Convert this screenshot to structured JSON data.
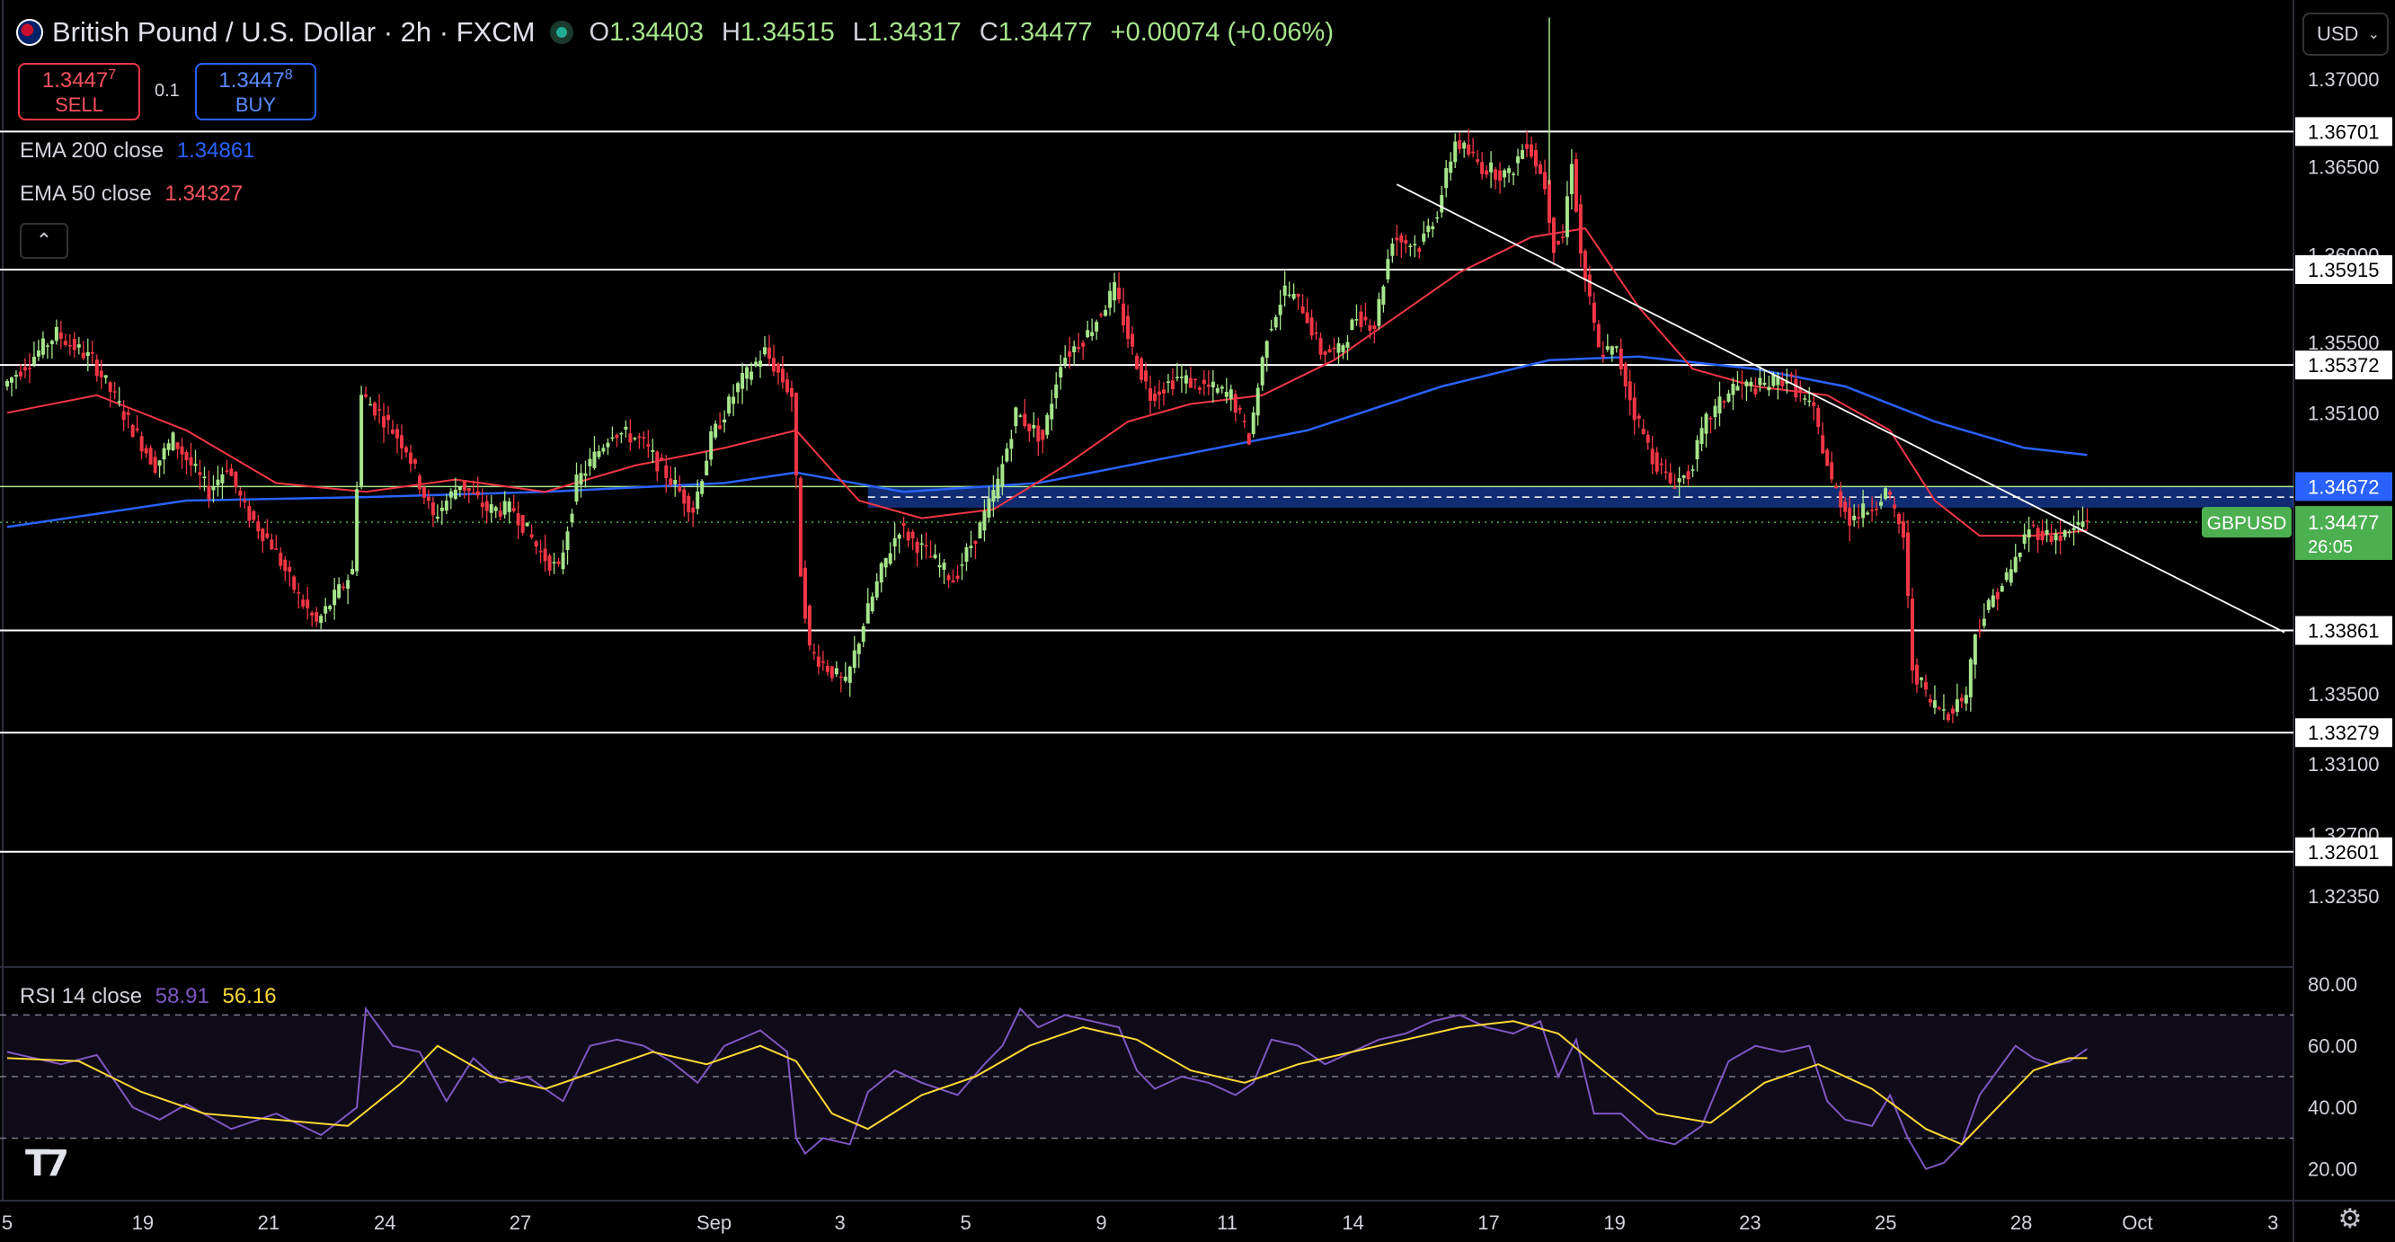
{
  "header": {
    "title": "British Pound / U.S. Dollar · 2h · FXCM",
    "ohlc": [
      {
        "k": "O",
        "v": "1.34403"
      },
      {
        "k": "H",
        "v": "1.34515"
      },
      {
        "k": "L",
        "v": "1.34317"
      },
      {
        "k": "C",
        "v": "1.34477"
      }
    ],
    "change": "+0.00074 (+0.06%)"
  },
  "trade": {
    "sell_price_main": "1.3447",
    "sell_price_sup": "7",
    "sell_label": "SELL",
    "quantity": "0.1",
    "buy_price_main": "1.3447",
    "buy_price_sup": "8",
    "buy_label": "BUY"
  },
  "indicators": {
    "ema200_label": "EMA 200 close",
    "ema200_value": "1.34861",
    "ema50_label": "EMA 50 close",
    "ema50_value": "1.34327",
    "rsi_label": "RSI 14 close",
    "rsi_value": "58.91",
    "rsi_ma_value": "56.16"
  },
  "currency_selector": "USD",
  "colors": {
    "up": "#a6e58b",
    "down": "#f23645",
    "ema50": "#f23645",
    "ema200": "#2962ff",
    "rsi": "#7e57c2",
    "rsi_ma": "#fdd835",
    "level": "#ffffff",
    "symbol_badge": "#4caf50"
  },
  "chart_data": {
    "type": "candlestick",
    "symbol": "GBPUSD",
    "timeframe": "2h",
    "price_axis_ticks": [
      1.37,
      1.365,
      1.36,
      1.355,
      1.351,
      1.335,
      1.331,
      1.327,
      1.3235
    ],
    "price_axis_tick_labels": [
      "1.37000",
      "1.36500",
      "1.36000",
      "1.35500",
      "1.35100",
      "1.33500",
      "1.33100",
      "1.32700",
      "1.32350"
    ],
    "ylim": [
      1.3195,
      1.3745
    ],
    "horizontal_levels": [
      1.36701,
      1.35915,
      1.35372,
      1.33861,
      1.33279,
      1.32601
    ],
    "horizontal_level_labels": [
      "1.36701",
      "1.35915",
      "1.35372",
      "1.33861",
      "1.33279",
      "1.32601"
    ],
    "support_zone": {
      "from": 1.3456,
      "to": 1.3468,
      "label": "1.34672"
    },
    "last_price": {
      "symbol_label": "GBPUSD",
      "value": 1.34477,
      "label": "1.34477",
      "countdown": "26:05"
    },
    "x_tick_labels": [
      "5",
      "19",
      "21",
      "24",
      "27",
      "Sep",
      "3",
      "5",
      "9",
      "11",
      "14",
      "17",
      "19",
      "23",
      "25",
      "28",
      "Oct",
      "3"
    ],
    "price_path": [
      [
        0,
        1.3525
      ],
      [
        6,
        1.3555
      ],
      [
        10,
        1.354
      ],
      [
        14,
        1.3505
      ],
      [
        17,
        1.348
      ],
      [
        19,
        1.3495
      ],
      [
        23,
        1.3465
      ],
      [
        25,
        1.348
      ],
      [
        27,
        1.3455
      ],
      [
        30,
        1.3435
      ],
      [
        33,
        1.3405
      ],
      [
        35,
        1.339
      ],
      [
        37,
        1.3405
      ],
      [
        39,
        1.342
      ],
      [
        40,
        1.352
      ],
      [
        42,
        1.351
      ],
      [
        45,
        1.349
      ],
      [
        48,
        1.345
      ],
      [
        51,
        1.347
      ],
      [
        54,
        1.3455
      ],
      [
        57,
        1.3455
      ],
      [
        60,
        1.343
      ],
      [
        62,
        1.342
      ],
      [
        64,
        1.347
      ],
      [
        68,
        1.35
      ],
      [
        71,
        1.3495
      ],
      [
        74,
        1.3475
      ],
      [
        77,
        1.3455
      ],
      [
        79,
        1.3495
      ],
      [
        82,
        1.3525
      ],
      [
        85,
        1.3545
      ],
      [
        88,
        1.352
      ],
      [
        89,
        1.342
      ],
      [
        90,
        1.3375
      ],
      [
        92,
        1.3365
      ],
      [
        94,
        1.3355
      ],
      [
        96,
        1.339
      ],
      [
        98,
        1.342
      ],
      [
        100,
        1.3445
      ],
      [
        103,
        1.343
      ],
      [
        106,
        1.3415
      ],
      [
        109,
        1.3445
      ],
      [
        111,
        1.347
      ],
      [
        113,
        1.351
      ],
      [
        116,
        1.3495
      ],
      [
        118,
        1.354
      ],
      [
        121,
        1.3555
      ],
      [
        124,
        1.358
      ],
      [
        126,
        1.3545
      ],
      [
        128,
        1.352
      ],
      [
        131,
        1.353
      ],
      [
        134,
        1.3525
      ],
      [
        137,
        1.352
      ],
      [
        139,
        1.3495
      ],
      [
        141,
        1.3555
      ],
      [
        143,
        1.358
      ],
      [
        145,
        1.357
      ],
      [
        147,
        1.3545
      ],
      [
        149,
        1.3545
      ],
      [
        151,
        1.3565
      ],
      [
        153,
        1.356
      ],
      [
        155,
        1.361
      ],
      [
        158,
        1.3605
      ],
      [
        160,
        1.3625
      ],
      [
        162,
        1.3665
      ],
      [
        165,
        1.365
      ],
      [
        168,
        1.3645
      ],
      [
        170,
        1.3665
      ],
      [
        172,
        1.364
      ],
      [
        173,
        1.3605
      ],
      [
        174,
        1.361
      ],
      [
        175,
        1.3655
      ],
      [
        176,
        1.36
      ],
      [
        178,
        1.3545
      ],
      [
        180,
        1.3545
      ],
      [
        182,
        1.351
      ],
      [
        184,
        1.3485
      ],
      [
        186,
        1.347
      ],
      [
        188,
        1.3475
      ],
      [
        190,
        1.3505
      ],
      [
        193,
        1.3525
      ],
      [
        196,
        1.3525
      ],
      [
        199,
        1.353
      ],
      [
        202,
        1.351
      ],
      [
        204,
        1.347
      ],
      [
        206,
        1.345
      ],
      [
        208,
        1.3455
      ],
      [
        210,
        1.3465
      ],
      [
        212,
        1.344
      ],
      [
        213,
        1.3365
      ],
      [
        215,
        1.3345
      ],
      [
        217,
        1.334
      ],
      [
        219,
        1.335
      ],
      [
        220,
        1.3385
      ],
      [
        222,
        1.3405
      ],
      [
        224,
        1.342
      ],
      [
        226,
        1.3445
      ],
      [
        228,
        1.344
      ],
      [
        230,
        1.344
      ],
      [
        232,
        1.3448
      ]
    ],
    "ema50_path": [
      [
        0,
        1.351
      ],
      [
        10,
        1.352
      ],
      [
        20,
        1.35
      ],
      [
        30,
        1.347
      ],
      [
        40,
        1.3465
      ],
      [
        50,
        1.3472
      ],
      [
        60,
        1.3465
      ],
      [
        70,
        1.348
      ],
      [
        80,
        1.349
      ],
      [
        88,
        1.35
      ],
      [
        95,
        1.346
      ],
      [
        102,
        1.345
      ],
      [
        110,
        1.3455
      ],
      [
        118,
        1.348
      ],
      [
        125,
        1.3505
      ],
      [
        132,
        1.3515
      ],
      [
        140,
        1.352
      ],
      [
        148,
        1.354
      ],
      [
        155,
        1.3565
      ],
      [
        162,
        1.359
      ],
      [
        170,
        1.361
      ],
      [
        176,
        1.3615
      ],
      [
        182,
        1.357
      ],
      [
        188,
        1.3535
      ],
      [
        195,
        1.3525
      ],
      [
        203,
        1.352
      ],
      [
        210,
        1.35
      ],
      [
        215,
        1.346
      ],
      [
        220,
        1.344
      ],
      [
        226,
        1.344
      ],
      [
        232,
        1.3443
      ]
    ],
    "ema200_path": [
      [
        0,
        1.3445
      ],
      [
        20,
        1.346
      ],
      [
        40,
        1.3462
      ],
      [
        60,
        1.3465
      ],
      [
        80,
        1.347
      ],
      [
        88,
        1.3476
      ],
      [
        100,
        1.3465
      ],
      [
        115,
        1.347
      ],
      [
        130,
        1.3485
      ],
      [
        145,
        1.35
      ],
      [
        160,
        1.3525
      ],
      [
        172,
        1.354
      ],
      [
        182,
        1.3542
      ],
      [
        195,
        1.3535
      ],
      [
        205,
        1.3525
      ],
      [
        215,
        1.3505
      ],
      [
        225,
        1.349
      ],
      [
        232,
        1.3486
      ]
    ],
    "trendline": {
      "from": [
        155,
        1.364
      ],
      "to": [
        254,
        1.3385
      ]
    },
    "rsi": {
      "ylim": [
        10,
        85
      ],
      "ticks": [
        80,
        60,
        40,
        20
      ],
      "tick_labels": [
        "80.00",
        "60.00",
        "40.00",
        "20.00"
      ],
      "bands": [
        70,
        50,
        30
      ],
      "rsi_path": [
        [
          0,
          58
        ],
        [
          6,
          54
        ],
        [
          10,
          57
        ],
        [
          14,
          40
        ],
        [
          17,
          36
        ],
        [
          20,
          41
        ],
        [
          25,
          33
        ],
        [
          30,
          38
        ],
        [
          35,
          31
        ],
        [
          39,
          40
        ],
        [
          40,
          72
        ],
        [
          43,
          60
        ],
        [
          46,
          58
        ],
        [
          49,
          42
        ],
        [
          52,
          56
        ],
        [
          55,
          48
        ],
        [
          58,
          50
        ],
        [
          62,
          42
        ],
        [
          65,
          60
        ],
        [
          68,
          62
        ],
        [
          71,
          60
        ],
        [
          74,
          55
        ],
        [
          77,
          48
        ],
        [
          80,
          60
        ],
        [
          84,
          65
        ],
        [
          87,
          58
        ],
        [
          88,
          30
        ],
        [
          89,
          25
        ],
        [
          91,
          30
        ],
        [
          94,
          28
        ],
        [
          96,
          45
        ],
        [
          99,
          52
        ],
        [
          102,
          48
        ],
        [
          106,
          44
        ],
        [
          109,
          54
        ],
        [
          111,
          60
        ],
        [
          113,
          72
        ],
        [
          115,
          66
        ],
        [
          118,
          70
        ],
        [
          121,
          68
        ],
        [
          124,
          66
        ],
        [
          126,
          52
        ],
        [
          128,
          46
        ],
        [
          131,
          50
        ],
        [
          134,
          48
        ],
        [
          137,
          44
        ],
        [
          139,
          48
        ],
        [
          141,
          62
        ],
        [
          144,
          60
        ],
        [
          147,
          54
        ],
        [
          150,
          58
        ],
        [
          153,
          62
        ],
        [
          156,
          64
        ],
        [
          159,
          68
        ],
        [
          162,
          70
        ],
        [
          165,
          66
        ],
        [
          168,
          64
        ],
        [
          171,
          68
        ],
        [
          173,
          50
        ],
        [
          175,
          62
        ],
        [
          177,
          38
        ],
        [
          180,
          38
        ],
        [
          183,
          30
        ],
        [
          186,
          28
        ],
        [
          189,
          34
        ],
        [
          192,
          55
        ],
        [
          195,
          60
        ],
        [
          198,
          58
        ],
        [
          201,
          60
        ],
        [
          203,
          42
        ],
        [
          205,
          36
        ],
        [
          208,
          34
        ],
        [
          210,
          44
        ],
        [
          212,
          30
        ],
        [
          214,
          20
        ],
        [
          216,
          22
        ],
        [
          218,
          28
        ],
        [
          220,
          44
        ],
        [
          222,
          52
        ],
        [
          224,
          60
        ],
        [
          226,
          56
        ],
        [
          228,
          54
        ],
        [
          230,
          55
        ],
        [
          232,
          59
        ]
      ],
      "rsi_ma_path": [
        [
          0,
          56
        ],
        [
          8,
          55
        ],
        [
          15,
          45
        ],
        [
          22,
          38
        ],
        [
          30,
          36
        ],
        [
          38,
          34
        ],
        [
          44,
          48
        ],
        [
          48,
          60
        ],
        [
          54,
          50
        ],
        [
          60,
          46
        ],
        [
          66,
          52
        ],
        [
          72,
          58
        ],
        [
          78,
          54
        ],
        [
          84,
          60
        ],
        [
          88,
          55
        ],
        [
          92,
          38
        ],
        [
          96,
          33
        ],
        [
          102,
          44
        ],
        [
          108,
          50
        ],
        [
          114,
          60
        ],
        [
          120,
          66
        ],
        [
          126,
          62
        ],
        [
          132,
          52
        ],
        [
          138,
          48
        ],
        [
          144,
          54
        ],
        [
          150,
          58
        ],
        [
          156,
          62
        ],
        [
          162,
          66
        ],
        [
          168,
          68
        ],
        [
          173,
          64
        ],
        [
          178,
          52
        ],
        [
          184,
          38
        ],
        [
          190,
          35
        ],
        [
          196,
          48
        ],
        [
          202,
          54
        ],
        [
          208,
          46
        ],
        [
          214,
          33
        ],
        [
          218,
          28
        ],
        [
          222,
          40
        ],
        [
          226,
          52
        ],
        [
          230,
          56
        ],
        [
          232,
          56
        ]
      ]
    }
  }
}
